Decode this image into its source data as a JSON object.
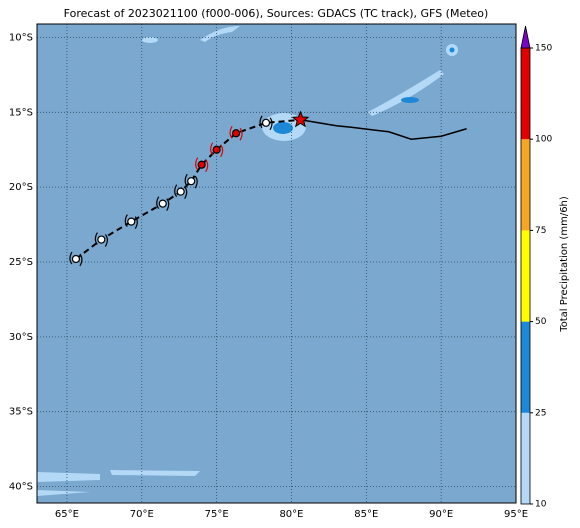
{
  "chart_data": {
    "type": "map",
    "title": "Forecast of 2023021100 (f000-006), Sources: GDACS (TC track), GFS (Meteo)",
    "xlim": [
      63,
      95
    ],
    "ylim": [
      -41.1,
      -9.1
    ],
    "xticks": [
      {
        "value": 65,
        "label": "65°E"
      },
      {
        "value": 70,
        "label": "70°E"
      },
      {
        "value": 75,
        "label": "75°E"
      },
      {
        "value": 80,
        "label": "80°E"
      },
      {
        "value": 85,
        "label": "85°E"
      },
      {
        "value": 90,
        "label": "90°E"
      },
      {
        "value": 95,
        "label": "95°E"
      }
    ],
    "yticks": [
      {
        "value": -10,
        "label": "10°S"
      },
      {
        "value": -15,
        "label": "15°S"
      },
      {
        "value": -20,
        "label": "20°S"
      },
      {
        "value": -25,
        "label": "25°S"
      },
      {
        "value": -30,
        "label": "30°S"
      },
      {
        "value": -35,
        "label": "35°S"
      },
      {
        "value": -40,
        "label": "40°S"
      }
    ],
    "grid": true,
    "track": {
      "lon": [
        65.6,
        67.3,
        69.3,
        71.4,
        72.6,
        73.3,
        74.0,
        75.0,
        76.3,
        78.3
      ],
      "lat": [
        -24.8,
        -23.5,
        -22.3,
        -21.1,
        -20.3,
        -19.6,
        -18.5,
        -17.5,
        -16.4,
        -15.7
      ],
      "colors": [
        "#ffffff",
        "#ffffff",
        "#ffffff",
        "#ffffff",
        "#ffffff",
        "#ffffff",
        "#e00000",
        "#e00000",
        "#e00000",
        "#ffffff"
      ]
    },
    "forecast": {
      "lon": [
        80.6,
        83.0,
        84.0,
        86.5,
        88.0,
        90.0,
        91.7
      ],
      "lat": [
        -15.5,
        -15.9,
        -16.0,
        -16.3,
        -16.8,
        -16.6,
        -16.1
      ],
      "color": "#000000"
    },
    "colorbar": {
      "label": "Total Precipitation (mm/6h)",
      "levels": [
        10,
        25,
        50,
        75,
        100,
        150
      ],
      "colors": [
        "#b3d9f7",
        "#1e88d8",
        "#ffff00",
        "#f5a623",
        "#e00000"
      ],
      "extend_color": "#7b00c8"
    }
  }
}
